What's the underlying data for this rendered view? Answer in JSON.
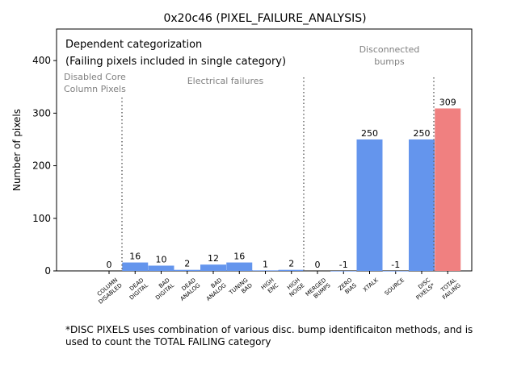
{
  "chart_data": {
    "type": "bar",
    "title": "0x20c46 (PIXEL_FAILURE_ANALYSIS)",
    "xlabel": "",
    "ylabel": "Number of pixels",
    "ylim": [
      0,
      460
    ],
    "yticks": [
      0,
      100,
      200,
      300,
      400
    ],
    "categories": [
      "COLUMN\nDISABLED",
      "DEAD\nDIGITAL",
      "BAD\nDIGITAL",
      "DEAD\nANALOG",
      "BAD\nANALOG",
      "TUNING\nBAD",
      "HIGH\nENC",
      "HIGH\nNOISE",
      "MERGED\nBUMPS",
      "ZERO\nBIAS",
      "XTALK",
      "SOURCE",
      "DISC\nPIXELS*",
      "TOTAL\nFAILING"
    ],
    "values": [
      0,
      16,
      10,
      2,
      12,
      16,
      1,
      2,
      0,
      -1,
      250,
      -1,
      250,
      309
    ],
    "bar_colors": [
      "#6495ed",
      "#6495ed",
      "#6495ed",
      "#6495ed",
      "#6495ed",
      "#6495ed",
      "#6495ed",
      "#6495ed",
      "#6495ed",
      "#6495ed",
      "#6495ed",
      "#6495ed",
      "#6495ed",
      "#f08080"
    ],
    "annotations": {
      "line1": "Dependent categorization",
      "line2": "(Failing pixels included in single category)",
      "disabled_core_1": "Disabled Core",
      "disabled_core_2": "Column Pixels",
      "electrical": "Electrical failures",
      "disconnected_1": "Disconnected",
      "disconnected_2": "bumps"
    },
    "footnote_1": "*DISC PIXELS uses combination of various disc. bump identificaiton methods, and is",
    "footnote_2": "used to count the TOTAL FAILING category"
  }
}
